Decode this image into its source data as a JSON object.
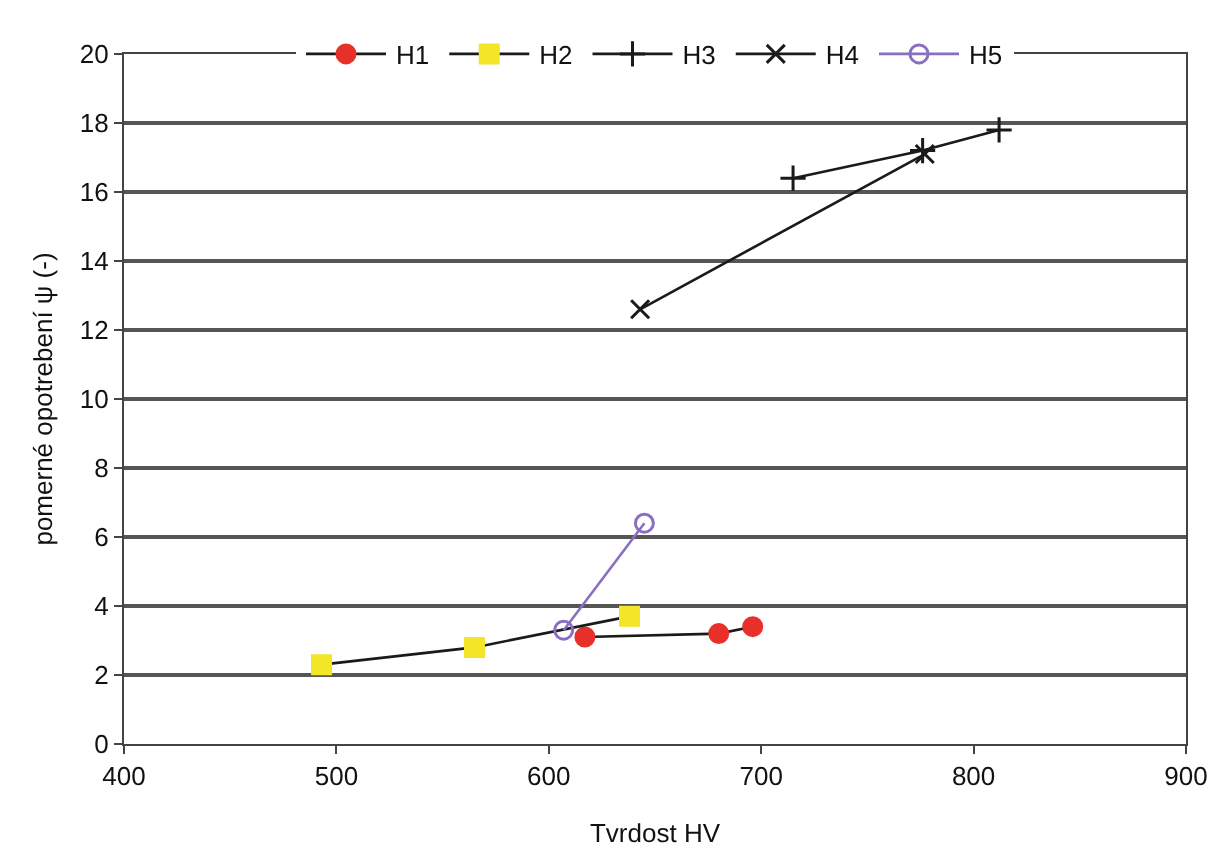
{
  "chart_data": {
    "type": "line",
    "xlabel": "Tvrdost HV",
    "ylabel": "pomerné opotrebení ψ (-)",
    "xlim": [
      400,
      900
    ],
    "xticks": [
      400,
      500,
      600,
      700,
      800,
      900
    ],
    "ylim": [
      0,
      20
    ],
    "yticks": [
      0,
      2,
      4,
      6,
      8,
      10,
      12,
      14,
      16,
      18,
      20
    ],
    "grid": "y",
    "legend": "top",
    "line_style": "solid",
    "series": [
      {
        "name": "H1",
        "color": "#e8302a",
        "marker": "circle",
        "x": [
          617,
          680,
          696
        ],
        "values": [
          3.1,
          3.2,
          3.4
        ]
      },
      {
        "name": "H2",
        "color": "#f2e626",
        "marker": "square",
        "x": [
          493,
          565,
          638
        ],
        "values": [
          2.3,
          2.8,
          3.7
        ]
      },
      {
        "name": "H3",
        "color": "#1a1a1a",
        "marker": "cross",
        "x": [
          715,
          776,
          812
        ],
        "values": [
          16.4,
          17.2,
          17.8
        ]
      },
      {
        "name": "H4",
        "color": "#1a1a1a",
        "marker": "x",
        "x": [
          643,
          777
        ],
        "values": [
          12.6,
          17.1
        ]
      },
      {
        "name": "H5",
        "color": "#8a6fc0",
        "marker": "circle-open",
        "x": [
          607,
          645
        ],
        "values": [
          3.3,
          6.4
        ]
      }
    ]
  }
}
